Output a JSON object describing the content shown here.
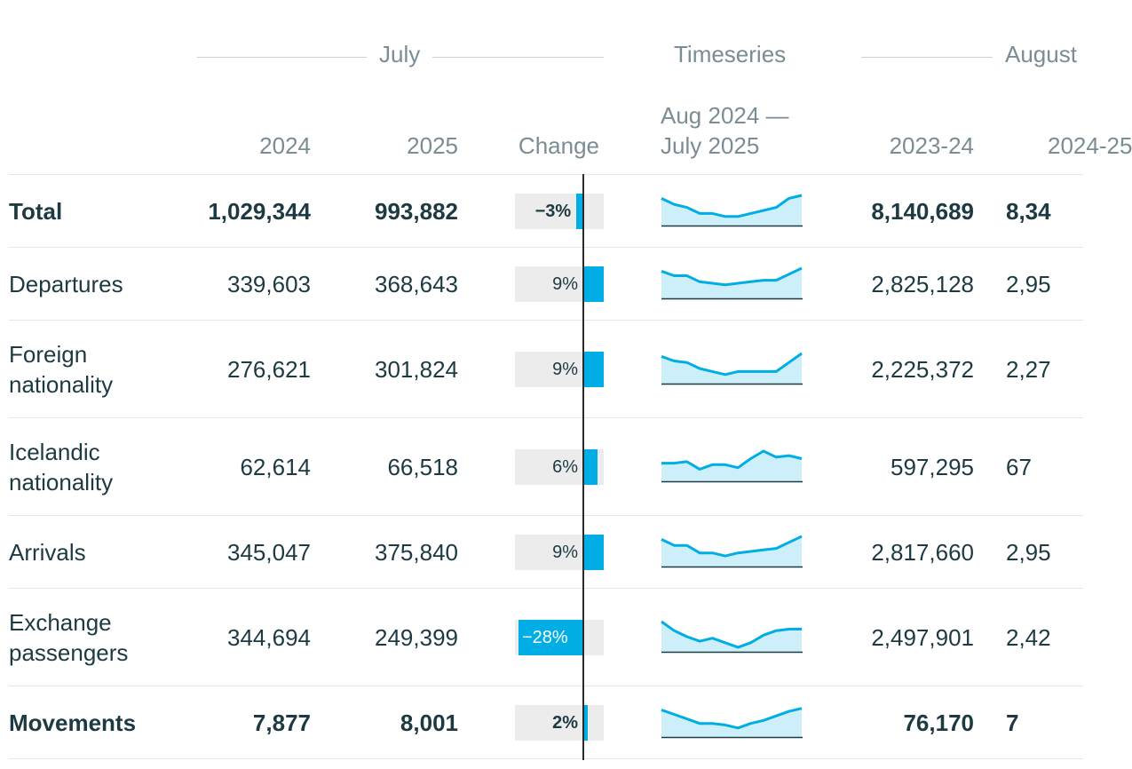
{
  "header": {
    "group_july": "July",
    "group_timeseries": "Timeseries",
    "group_august": "August",
    "col_2024": "2024",
    "col_2025": "2025",
    "col_change": "Change",
    "col_timeseries_range_1": "Aug 2024 —",
    "col_timeseries_range_2": "July 2025",
    "col_2023_24": "2023-24",
    "col_2024_25": "2024-25"
  },
  "colors": {
    "accent": "#00aee5",
    "bar_bg": "#ececec",
    "spark_fill": "#cdeffa",
    "text": "#1d3a42",
    "muted": "#7a8c94"
  },
  "rows": [
    {
      "label_1": "Total",
      "label_2": "",
      "bold": true,
      "v2024": "1,029,344",
      "v2025": "993,882",
      "change_label": "−3%",
      "change_pct": -3,
      "aug_2023_24": "8,140,689",
      "aug_2024_25": "8,34",
      "spark": [
        0.9,
        0.7,
        0.6,
        0.4,
        0.4,
        0.3,
        0.3,
        0.4,
        0.5,
        0.6,
        0.9,
        1.0
      ]
    },
    {
      "label_1": "Departures",
      "label_2": "",
      "bold": false,
      "v2024": "339,603",
      "v2025": "368,643",
      "change_label": "9%",
      "change_pct": 9,
      "aug_2023_24": "2,825,128",
      "aug_2024_25": "2,95",
      "spark": [
        0.9,
        0.75,
        0.75,
        0.55,
        0.5,
        0.45,
        0.5,
        0.55,
        0.6,
        0.6,
        0.8,
        1.0
      ]
    },
    {
      "label_1": "Foreign",
      "label_2": "nationality",
      "bold": false,
      "v2024": "276,621",
      "v2025": "301,824",
      "change_label": "9%",
      "change_pct": 9,
      "aug_2023_24": "2,225,372",
      "aug_2024_25": "2,27",
      "spark": [
        0.9,
        0.75,
        0.7,
        0.5,
        0.4,
        0.3,
        0.4,
        0.4,
        0.4,
        0.4,
        0.7,
        1.0
      ]
    },
    {
      "label_1": "Icelandic",
      "label_2": "nationality",
      "bold": false,
      "v2024": "62,614",
      "v2025": "66,518",
      "change_label": "6%",
      "change_pct": 6,
      "aug_2023_24": "597,295",
      "aug_2024_25": "67",
      "spark": [
        0.6,
        0.6,
        0.65,
        0.4,
        0.55,
        0.55,
        0.45,
        0.75,
        1.0,
        0.8,
        0.85,
        0.75
      ]
    },
    {
      "label_1": "Arrivals",
      "label_2": "",
      "bold": false,
      "v2024": "345,047",
      "v2025": "375,840",
      "change_label": "9%",
      "change_pct": 9,
      "aug_2023_24": "2,817,660",
      "aug_2024_25": "2,95",
      "spark": [
        0.9,
        0.7,
        0.7,
        0.45,
        0.45,
        0.35,
        0.45,
        0.5,
        0.55,
        0.6,
        0.8,
        1.0
      ]
    },
    {
      "label_1": "Exchange",
      "label_2": "passengers",
      "bold": false,
      "v2024": "344,694",
      "v2025": "249,399",
      "change_label": "−28%",
      "change_pct": -28,
      "aug_2023_24": "2,497,901",
      "aug_2024_25": "2,42",
      "spark": [
        1.0,
        0.7,
        0.5,
        0.35,
        0.45,
        0.3,
        0.15,
        0.3,
        0.55,
        0.7,
        0.75,
        0.75
      ]
    },
    {
      "label_1": "Movements",
      "label_2": "",
      "bold": true,
      "v2024": "7,877",
      "v2025": "8,001",
      "change_label": "2%",
      "change_pct": 2,
      "aug_2023_24": "76,170",
      "aug_2024_25": "7",
      "spark": [
        0.9,
        0.75,
        0.6,
        0.45,
        0.45,
        0.4,
        0.3,
        0.45,
        0.55,
        0.7,
        0.85,
        0.95
      ]
    }
  ]
}
